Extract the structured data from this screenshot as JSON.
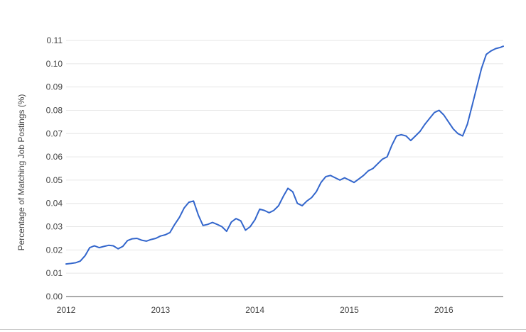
{
  "chart_data": {
    "type": "line",
    "title": "",
    "xlabel": "",
    "ylabel": "Percentage of Matching Job Postings (%)",
    "x_tick_labels": [
      "2012",
      "2013",
      "2014",
      "2015",
      "2016"
    ],
    "x_tick_values": [
      2012,
      2013,
      2014,
      2015,
      2016
    ],
    "y_tick_labels": [
      "0.00",
      "0.01",
      "0.02",
      "0.03",
      "0.04",
      "0.05",
      "0.06",
      "0.07",
      "0.08",
      "0.09",
      "0.10",
      "0.11"
    ],
    "xlim": [
      2012,
      2016.63
    ],
    "ylim": [
      0,
      0.11
    ],
    "grid": true,
    "legend": "none",
    "series": [
      {
        "color": "#3366cc",
        "x": [
          2012.0,
          2012.05,
          2012.1,
          2012.15,
          2012.2,
          2012.25,
          2012.3,
          2012.35,
          2012.4,
          2012.45,
          2012.5,
          2012.55,
          2012.6,
          2012.65,
          2012.7,
          2012.75,
          2012.8,
          2012.85,
          2012.9,
          2012.95,
          2013.0,
          2013.05,
          2013.1,
          2013.15,
          2013.2,
          2013.25,
          2013.3,
          2013.35,
          2013.4,
          2013.45,
          2013.5,
          2013.55,
          2013.6,
          2013.65,
          2013.7,
          2013.75,
          2013.8,
          2013.85,
          2013.9,
          2013.95,
          2014.0,
          2014.05,
          2014.1,
          2014.15,
          2014.2,
          2014.25,
          2014.3,
          2014.35,
          2014.4,
          2014.45,
          2014.5,
          2014.55,
          2014.6,
          2014.65,
          2014.7,
          2014.75,
          2014.8,
          2014.85,
          2014.9,
          2014.95,
          2015.0,
          2015.05,
          2015.1,
          2015.15,
          2015.2,
          2015.25,
          2015.3,
          2015.35,
          2015.4,
          2015.45,
          2015.5,
          2015.55,
          2015.6,
          2015.65,
          2015.7,
          2015.75,
          2015.8,
          2015.85,
          2015.9,
          2015.95,
          2016.0,
          2016.05,
          2016.1,
          2016.15,
          2016.2,
          2016.25,
          2016.3,
          2016.35,
          2016.4,
          2016.45,
          2016.5,
          2016.55,
          2016.6,
          2016.63
        ],
        "y": [
          0.014,
          0.0142,
          0.0145,
          0.0152,
          0.0175,
          0.021,
          0.0218,
          0.021,
          0.0215,
          0.022,
          0.0218,
          0.0205,
          0.0215,
          0.024,
          0.0248,
          0.025,
          0.0242,
          0.0238,
          0.0245,
          0.025,
          0.026,
          0.0265,
          0.0275,
          0.031,
          0.034,
          0.038,
          0.0405,
          0.041,
          0.035,
          0.0305,
          0.031,
          0.0318,
          0.031,
          0.03,
          0.028,
          0.032,
          0.0335,
          0.0325,
          0.0285,
          0.03,
          0.033,
          0.0375,
          0.037,
          0.036,
          0.037,
          0.039,
          0.043,
          0.0465,
          0.045,
          0.04,
          0.039,
          0.041,
          0.0425,
          0.045,
          0.049,
          0.0515,
          0.052,
          0.051,
          0.05,
          0.051,
          0.05,
          0.049,
          0.0505,
          0.052,
          0.054,
          0.055,
          0.057,
          0.059,
          0.06,
          0.065,
          0.069,
          0.0695,
          0.069,
          0.067,
          0.069,
          0.071,
          0.074,
          0.0765,
          0.079,
          0.08,
          0.078,
          0.075,
          0.072,
          0.07,
          0.069,
          0.074,
          0.082,
          0.09,
          0.098,
          0.104,
          0.1055,
          0.1065,
          0.107,
          0.1075
        ]
      }
    ]
  }
}
